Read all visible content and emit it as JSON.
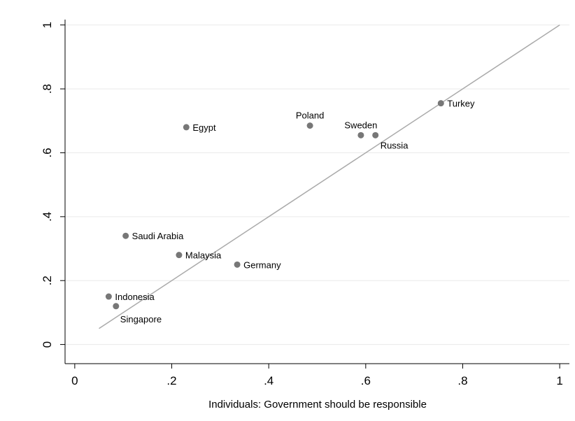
{
  "chart_data": {
    "type": "scatter",
    "title": "",
    "xlabel": "Individuals: Government should be responsible",
    "ylabel": "",
    "xlim": [
      -0.02,
      1.02
    ],
    "ylim": [
      -0.06,
      1.03
    ],
    "x_ticks": [
      0,
      0.2,
      0.4,
      0.6,
      0.8,
      1
    ],
    "x_tick_labels": [
      "0",
      ".2",
      ".4",
      ".6",
      ".8",
      "1"
    ],
    "y_ticks": [
      0,
      0.2,
      0.4,
      0.6,
      0.8,
      1
    ],
    "y_tick_labels": [
      "0",
      ".2",
      ".4",
      ".6",
      ".8",
      "1"
    ],
    "grid": "horizontal",
    "marker_color": "#777777",
    "line_color": "#aaaaaa",
    "points": [
      {
        "label": "Egypt",
        "x": 0.23,
        "y": 0.68,
        "label_pos": "right"
      },
      {
        "label": "Poland",
        "x": 0.485,
        "y": 0.685,
        "label_pos": "above"
      },
      {
        "label": "Sweden",
        "x": 0.59,
        "y": 0.655,
        "label_pos": "above"
      },
      {
        "label": "Russia",
        "x": 0.62,
        "y": 0.655,
        "label_pos": "below"
      },
      {
        "label": "Turkey",
        "x": 0.755,
        "y": 0.755,
        "label_pos": "right"
      },
      {
        "label": "Saudi Arabia",
        "x": 0.105,
        "y": 0.34,
        "label_pos": "right"
      },
      {
        "label": "Malaysia",
        "x": 0.215,
        "y": 0.28,
        "label_pos": "right"
      },
      {
        "label": "Germany",
        "x": 0.335,
        "y": 0.25,
        "label_pos": "right"
      },
      {
        "label": "Indonesia",
        "x": 0.07,
        "y": 0.15,
        "label_pos": "right"
      },
      {
        "label": "Singapore",
        "x": 0.085,
        "y": 0.12,
        "label_pos": "below-right"
      }
    ],
    "fit_line": {
      "x": [
        0.05,
        1.0
      ],
      "y": [
        0.05,
        1.0
      ]
    }
  }
}
